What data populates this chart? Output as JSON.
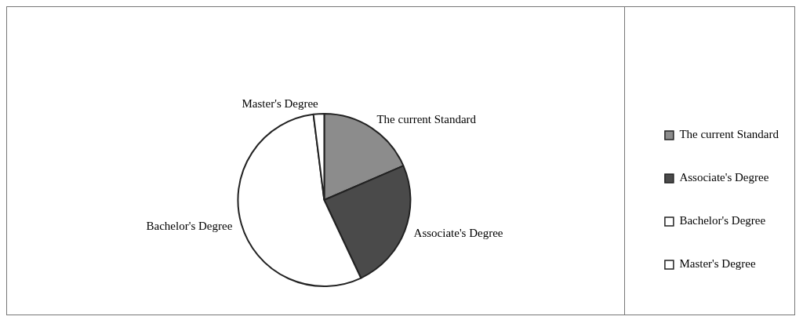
{
  "chart_data": {
    "type": "pie",
    "categories": [
      "The current Standard",
      "Associate's Degree",
      "Bachelor's Degree",
      "Master's Degree"
    ],
    "values": [
      18.5,
      24.5,
      55,
      2
    ],
    "colors": [
      "#8c8c8c",
      "#4a4a4a",
      "#ffffff",
      "#ffffff"
    ],
    "legend": "right"
  }
}
